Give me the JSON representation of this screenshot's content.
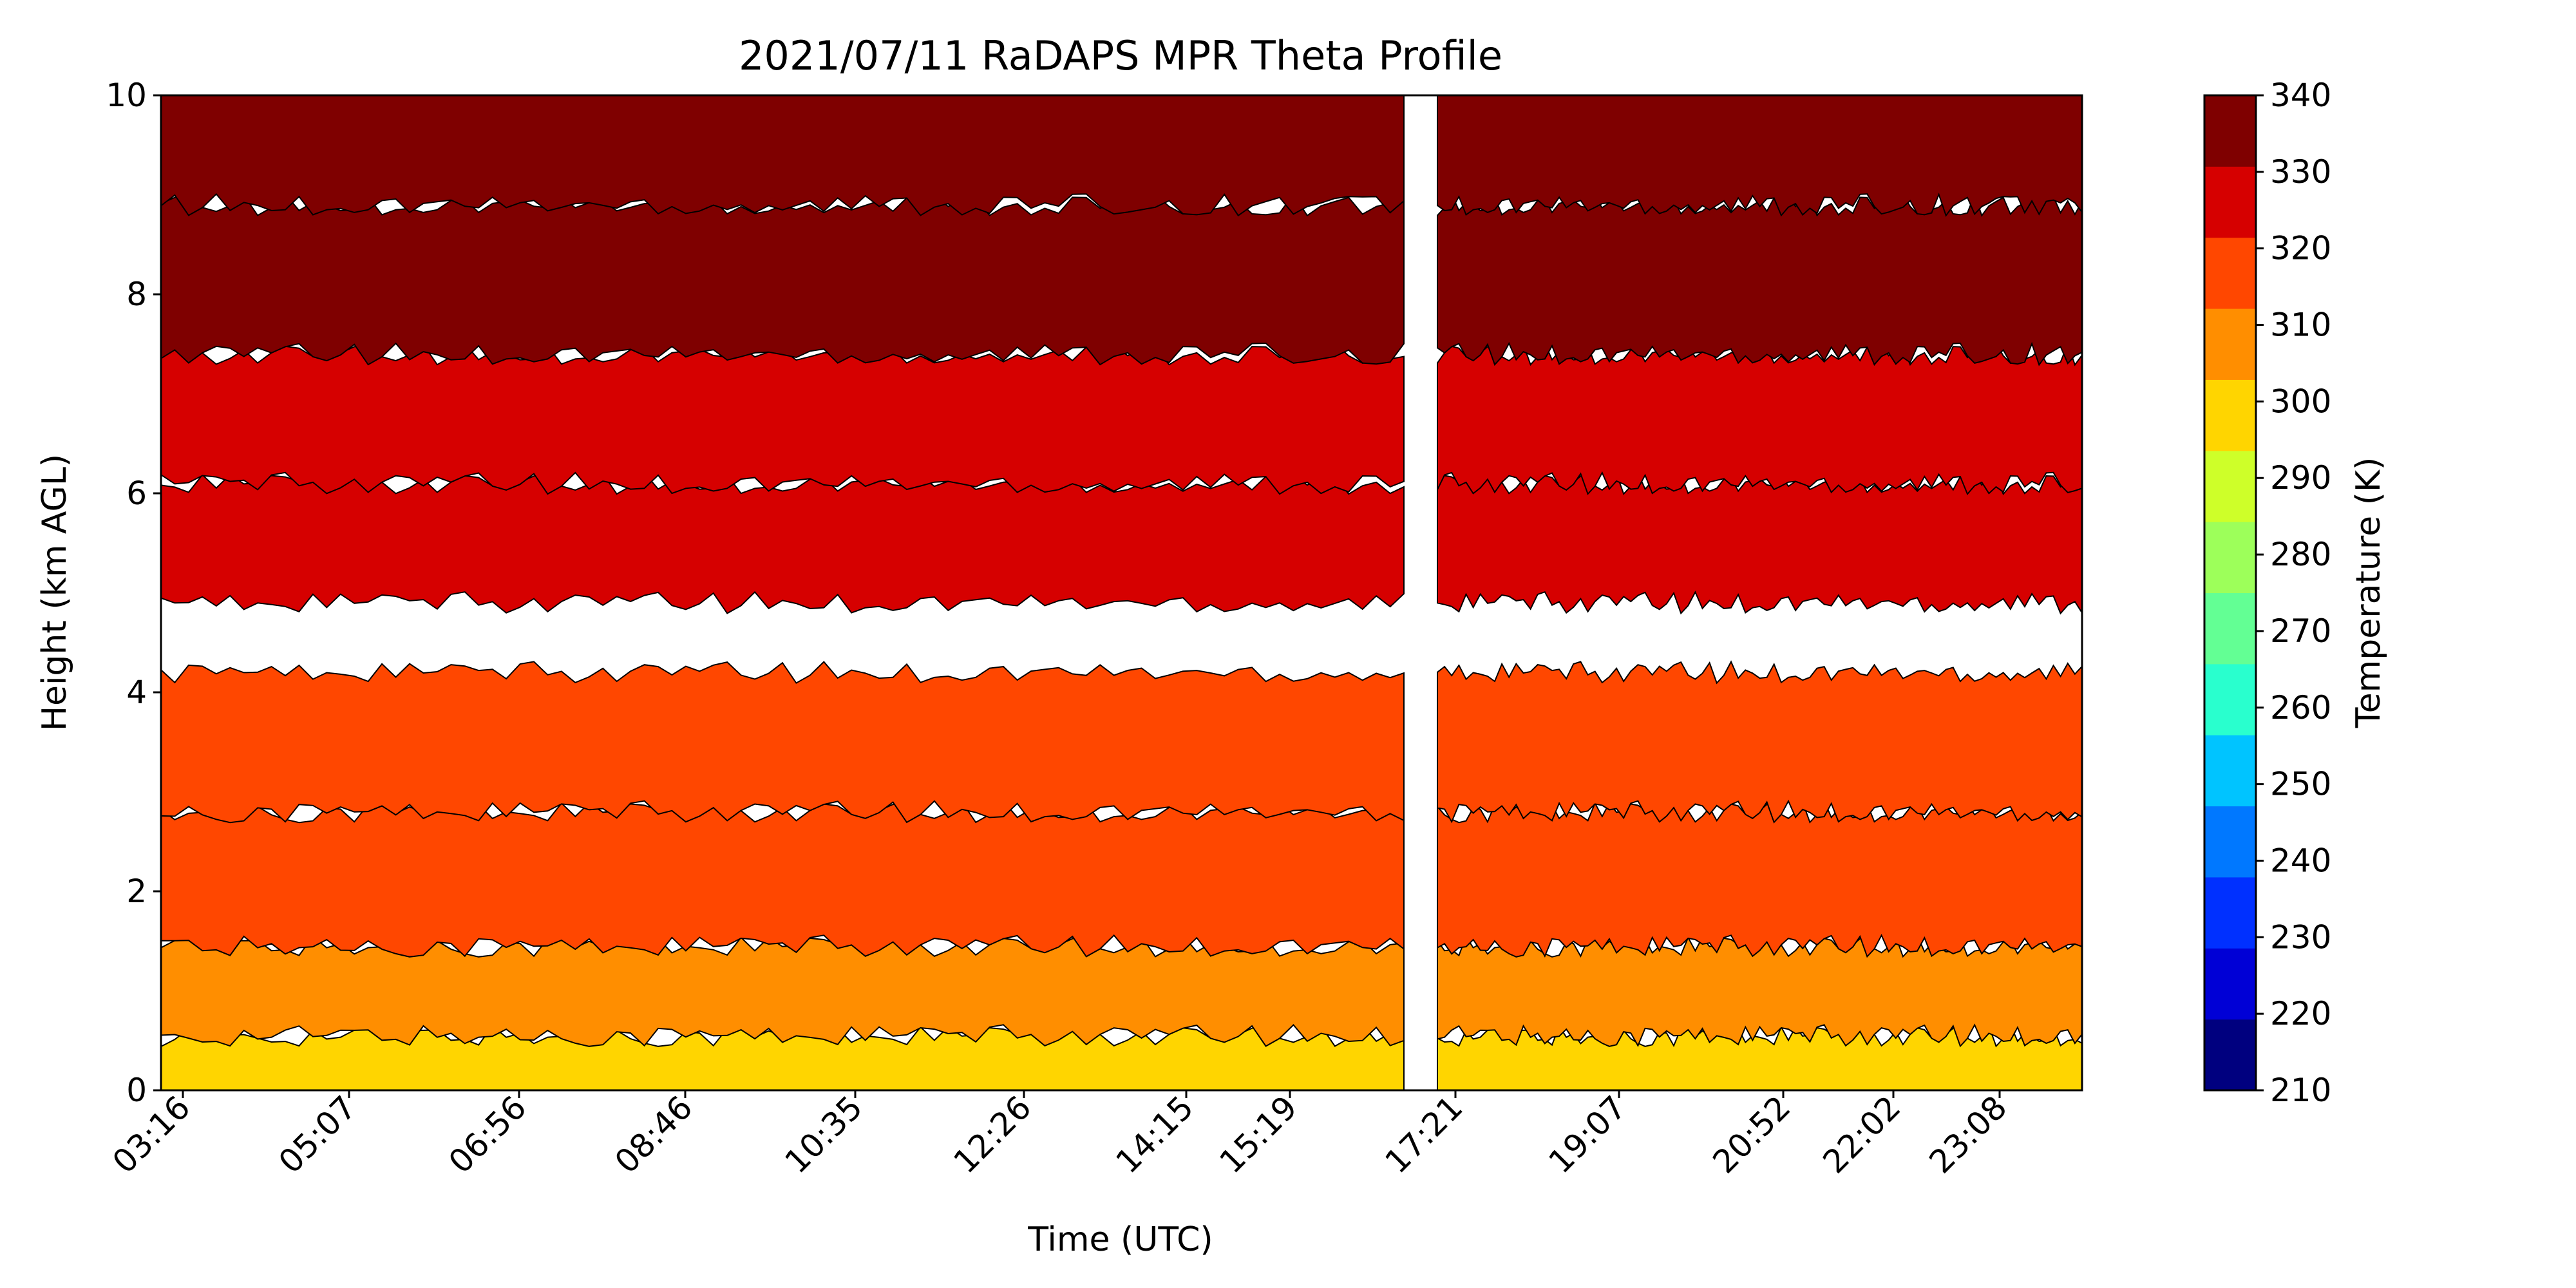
{
  "chart_data": {
    "type": "heatmap",
    "title": "2021/07/11 RaDAPS MPR Theta Profile",
    "xlabel": "Time (UTC)",
    "ylabel": "Height (km AGL)",
    "colorbar_label": "Temperature (K)",
    "x_tick_labels": [
      "03:16",
      "05:07",
      "06:56",
      "08:46",
      "10:35",
      "12:26",
      "14:15",
      "15:19",
      "17:21",
      "19:07",
      "20:52",
      "22:02",
      "23:08"
    ],
    "y_ticks": [
      0,
      2,
      4,
      6,
      8,
      10
    ],
    "ylim": [
      0,
      10
    ],
    "colorbar_ticks": [
      210,
      220,
      230,
      240,
      250,
      260,
      270,
      280,
      290,
      300,
      310,
      320,
      330,
      340
    ],
    "colorbar_range": [
      210,
      340
    ],
    "colormap": "jet",
    "colormap_colors": [
      "#00007f",
      "#0000d6",
      "#0030ff",
      "#0078ff",
      "#00c4ff",
      "#29ffce",
      "#63ff94",
      "#9dff5a",
      "#ceff29",
      "#ffd500",
      "#ff8e00",
      "#ff4700",
      "#d60000",
      "#7f0000"
    ],
    "potential_temperature_bands_K": [
      {
        "range": [
          300,
          305
        ],
        "height_km": [
          0.0,
          0.55
        ]
      },
      {
        "range": [
          305,
          310
        ],
        "height_km": [
          0.55,
          1.45
        ]
      },
      {
        "range": [
          310,
          315
        ],
        "height_km": [
          1.45,
          2.8
        ]
      },
      {
        "range": [
          315,
          320
        ],
        "height_km": [
          2.8,
          4.2
        ]
      },
      {
        "range": [
          320,
          325
        ],
        "height_km": [
          4.9,
          6.1
        ]
      },
      {
        "range": [
          325,
          330
        ],
        "height_km": [
          6.1,
          7.4
        ]
      },
      {
        "range": [
          330,
          335
        ],
        "height_km": [
          7.4,
          8.9
        ]
      },
      {
        "range": [
          335,
          340
        ],
        "height_km": [
          8.9,
          10.0
        ]
      }
    ],
    "grid": false
  }
}
